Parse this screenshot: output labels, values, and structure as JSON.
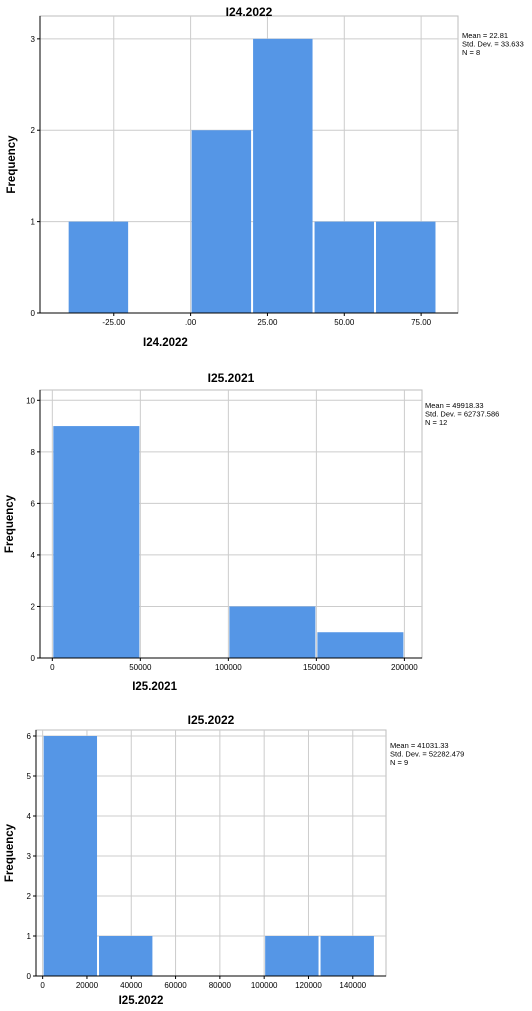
{
  "chart_data": [
    {
      "type": "bar",
      "title": "I24.2022",
      "xlabel": "I24.2022",
      "ylabel": "Frequency",
      "stats": [
        "Mean = 22.81",
        "Std. Dev. = 33.633",
        "N = 8"
      ],
      "bins": [
        [
          -40,
          -20
        ],
        [
          -20,
          0
        ],
        [
          0,
          20
        ],
        [
          20,
          40
        ],
        [
          40,
          60
        ],
        [
          60,
          80
        ]
      ],
      "values": [
        1,
        0,
        2,
        3,
        1,
        1
      ],
      "xlim": [
        -49,
        87
      ],
      "ylim": [
        0,
        3.25
      ],
      "xticks": [
        -25,
        0,
        25,
        50,
        75
      ],
      "xtick_labels": [
        "-25.00",
        ".00",
        "25.00",
        "50.00",
        "75.00"
      ],
      "yticks": [
        0,
        1,
        2,
        3
      ],
      "ytick_labels": [
        "0",
        "1",
        "2",
        "3"
      ],
      "grid": true,
      "bar_color": "#5596E6"
    },
    {
      "type": "bar",
      "title": "I25.2021",
      "xlabel": "I25.2021",
      "ylabel": "Frequency",
      "stats": [
        "Mean = 49918.33",
        "Std. Dev. = 62737.586",
        "N = 12"
      ],
      "bins": [
        [
          0,
          50000
        ],
        [
          50000,
          100000
        ],
        [
          100000,
          150000
        ],
        [
          150000,
          200000
        ]
      ],
      "values": [
        9,
        0,
        2,
        1
      ],
      "xlim": [
        -7000,
        210000
      ],
      "ylim": [
        0,
        10.4
      ],
      "xticks": [
        0,
        50000,
        100000,
        150000,
        200000
      ],
      "xtick_labels": [
        "0",
        "50000",
        "100000",
        "150000",
        "200000"
      ],
      "yticks": [
        0,
        2,
        4,
        6,
        8,
        10
      ],
      "ytick_labels": [
        "0",
        "2",
        "4",
        "6",
        "8",
        "10"
      ],
      "grid": true,
      "bar_color": "#5596E6"
    },
    {
      "type": "bar",
      "title": "I25.2022",
      "xlabel": "I25.2022",
      "ylabel": "Frequency",
      "stats": [
        "Mean = 41031.33",
        "Std. Dev. = 52282.479",
        "N = 9"
      ],
      "bins": [
        [
          0,
          25000
        ],
        [
          25000,
          50000
        ],
        [
          50000,
          75000
        ],
        [
          75000,
          100000
        ],
        [
          100000,
          125000
        ],
        [
          125000,
          150000
        ]
      ],
      "values": [
        6,
        1,
        0,
        0,
        1,
        1
      ],
      "xlim": [
        -3000,
        155000
      ],
      "ylim": [
        0,
        6.15
      ],
      "xticks": [
        0,
        20000,
        40000,
        60000,
        80000,
        100000,
        120000,
        140000
      ],
      "xtick_labels": [
        "0",
        "20000",
        "40000",
        "60000",
        "80000",
        "100000",
        "120000",
        "140000"
      ],
      "yticks": [
        0,
        1,
        2,
        3,
        4,
        5,
        6
      ],
      "ytick_labels": [
        "0",
        "1",
        "2",
        "3",
        "4",
        "5",
        "6"
      ],
      "grid": true,
      "bar_color": "#5596E6"
    }
  ]
}
